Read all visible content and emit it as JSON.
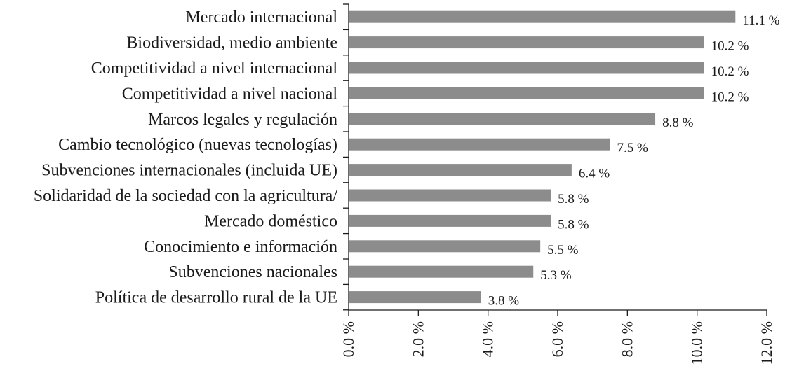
{
  "chart_data": {
    "type": "bar",
    "orientation": "horizontal",
    "categories": [
      "Mercado internacional",
      "Biodiversidad, medio ambiente",
      "Competitividad a nivel internacional",
      "Competitividad a nivel nacional",
      "Marcos legales y regulación",
      "Cambio tecnológico (nuevas tecnologías)",
      "Subvenciones internacionales (incluida UE)",
      "Solidaridad de la sociedad con la agricultura/",
      "Mercado doméstico",
      "Conocimiento e información",
      "Subvenciones nacionales",
      "Política de desarrollo rural de la UE"
    ],
    "values": [
      11.1,
      10.2,
      10.2,
      10.2,
      8.8,
      7.5,
      6.4,
      5.8,
      5.8,
      5.5,
      5.3,
      3.8
    ],
    "value_labels": [
      "11.1 %",
      "10.2 %",
      "10.2 %",
      "10.2 %",
      "8.8 %",
      "7.5 %",
      "6.4 %",
      "5.8 %",
      "5.8 %",
      "5.5 %",
      "5.3 %",
      "3.8 %"
    ],
    "xlim": [
      0,
      12
    ],
    "x_ticks": [
      0,
      2,
      4,
      6,
      8,
      10,
      12
    ],
    "x_tick_labels": [
      "0.0 %",
      "2.0 %",
      "4.0 %",
      "6.0 %",
      "8.0 %",
      "10.0 %",
      "12.0 %"
    ],
    "grid": false,
    "bar_color": "#8c8c8c",
    "title": "",
    "xlabel": "",
    "ylabel": ""
  }
}
